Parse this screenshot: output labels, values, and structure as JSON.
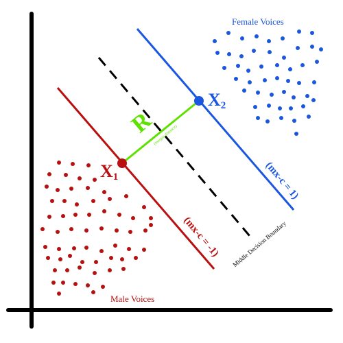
{
  "labels": {
    "female_voices": "Female Voices",
    "male_voices": "Male Voices",
    "x1_main": "X",
    "x1_sub": "1",
    "x2_main": "X",
    "x2_sub": "2",
    "margin_symbol": "R",
    "margin_caption": "(margin distance)",
    "plus_boundary": "(mx-c = 1)",
    "minus_boundary": "(mx-c = -1)",
    "middle_boundary": "Middle Decision Boundary"
  },
  "colors": {
    "axis": "#000000",
    "female": "#1a56e0",
    "male": "#b80f0f",
    "margin": "#5ee000",
    "middle": "#000000"
  }
}
